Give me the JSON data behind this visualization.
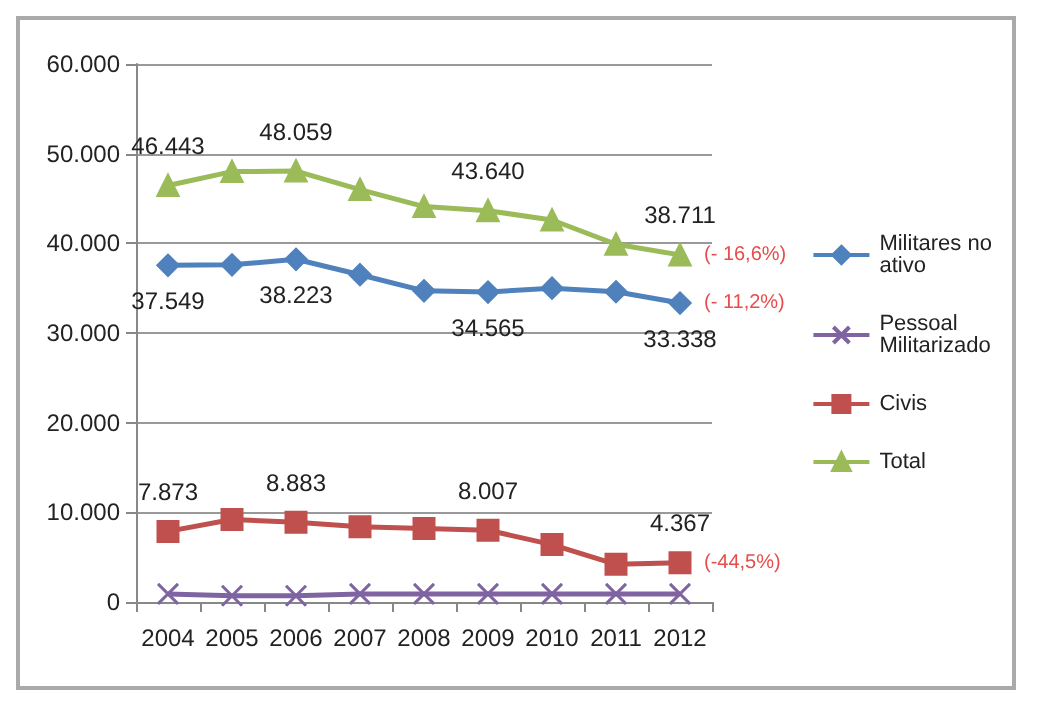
{
  "chart_data": {
    "type": "line",
    "categories": [
      "2004",
      "2005",
      "2006",
      "2007",
      "2008",
      "2009",
      "2010",
      "2011",
      "2012"
    ],
    "ylim": [
      0,
      60000
    ],
    "yticks": [
      0,
      {
        "value": 10000,
        "label": "10.000"
      },
      {
        "value": 20000,
        "label": "20.000"
      },
      {
        "value": 30000,
        "label": "30.000"
      },
      {
        "value": 40000,
        "label": "40.000"
      },
      {
        "value": 50000,
        "label": "50.000"
      },
      {
        "value": 60000,
        "label": "60.000"
      }
    ],
    "grid": "y",
    "legend": "right",
    "series": [
      {
        "name": "Militares no ativo",
        "color": "#4f81bd",
        "marker": "diamond",
        "values": [
          37549,
          37600,
          38223,
          36500,
          34700,
          34565,
          35000,
          34600,
          33338
        ],
        "value_labels": [
          "37.549",
          null,
          "38.223",
          null,
          null,
          "34.565",
          null,
          null,
          "33.338"
        ]
      },
      {
        "name": "Pessoal Militarizado",
        "color": "#8064a2",
        "marker": "cross",
        "values": [
          900,
          700,
          700,
          900,
          900,
          900,
          900,
          900,
          900
        ]
      },
      {
        "name": "Civis",
        "color": "#c0504d",
        "marker": "square",
        "values": [
          7873,
          9200,
          8883,
          8400,
          8200,
          8007,
          6400,
          4200,
          4367
        ],
        "value_labels": [
          "7.873",
          null,
          "8.883",
          null,
          null,
          "8.007",
          null,
          null,
          "4.367"
        ]
      },
      {
        "name": "Total",
        "color": "#9bbb59",
        "marker": "triangle",
        "values": [
          46443,
          48000,
          48059,
          46000,
          44100,
          43640,
          42600,
          39900,
          38711
        ],
        "value_labels": [
          "46.443",
          null,
          "48.059",
          null,
          null,
          "43.640",
          null,
          null,
          "38.711"
        ]
      }
    ],
    "annotations": [
      {
        "text": "(- 16,6%)",
        "x": "2012",
        "y": 38711
      },
      {
        "text": "(- 11,2%)",
        "x": "2012",
        "y": 33338
      },
      {
        "text": "(-44,5%)",
        "x": "2012",
        "y": 4367
      }
    ]
  }
}
